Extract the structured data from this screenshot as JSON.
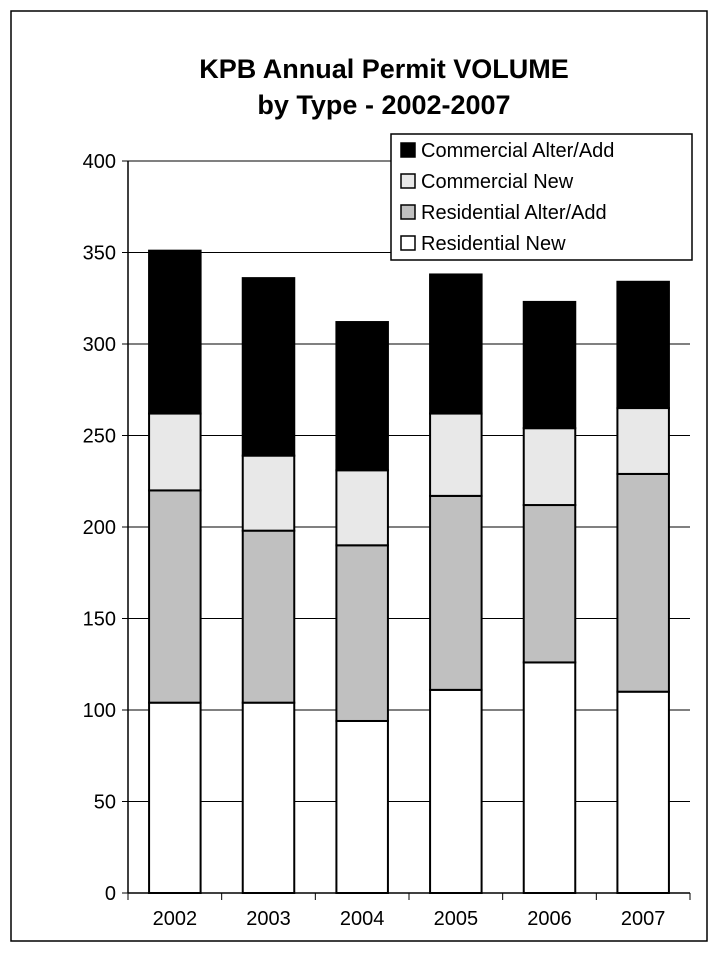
{
  "chart_data": {
    "type": "bar",
    "stacked": true,
    "title_lines": [
      "KPB Annual Permit VOLUME",
      "by Type - 2002-2007"
    ],
    "xlabel": "",
    "ylabel": "",
    "categories": [
      "2002",
      "2003",
      "2004",
      "2005",
      "2006",
      "2007"
    ],
    "ylim": [
      0,
      400
    ],
    "yticks": [
      0,
      50,
      100,
      150,
      200,
      250,
      300,
      350,
      400
    ],
    "grid": true,
    "legend_position": "top-right",
    "series": [
      {
        "name": "Residential New",
        "color": "#ffffff",
        "values": [
          104,
          104,
          94,
          111,
          126,
          110
        ]
      },
      {
        "name": "Residential Alter/Add",
        "color": "#c0c0c0",
        "values": [
          116,
          94,
          96,
          106,
          86,
          119
        ]
      },
      {
        "name": "Commercial New",
        "color": "#e8e8e8",
        "values": [
          42,
          41,
          41,
          45,
          42,
          36
        ]
      },
      {
        "name": "Commercial Alter/Add",
        "color": "#000000",
        "values": [
          89,
          97,
          81,
          76,
          69,
          69
        ]
      }
    ],
    "legend_order": [
      "Commercial Alter/Add",
      "Commercial New",
      "Residential Alter/Add",
      "Residential New"
    ]
  }
}
